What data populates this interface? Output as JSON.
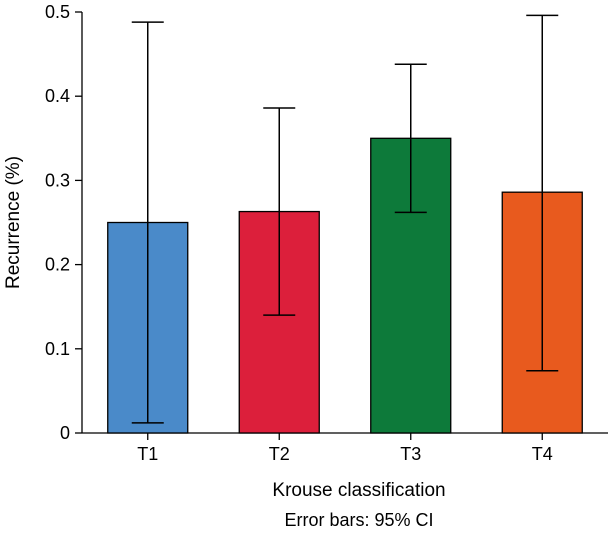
{
  "chart_data": {
    "type": "bar",
    "categories": [
      "T1",
      "T2",
      "T3",
      "T4"
    ],
    "values": [
      0.25,
      0.263,
      0.35,
      0.286
    ],
    "error_low": [
      0.012,
      0.14,
      0.262,
      0.074
    ],
    "error_high": [
      0.488,
      0.386,
      0.438,
      0.496
    ],
    "colors": [
      "#4a8ac9",
      "#dc1f3b",
      "#0d7a3a",
      "#e85a1e"
    ],
    "xlabel": "Krouse classification",
    "ylabel": "Recurrence (%)",
    "note": "Error bars: 95% CI",
    "ylim": [
      0,
      0.5
    ],
    "yticks": [
      "0",
      "0.1",
      "0.2",
      "0.3",
      "0.4",
      "0.5"
    ],
    "grid": false
  }
}
